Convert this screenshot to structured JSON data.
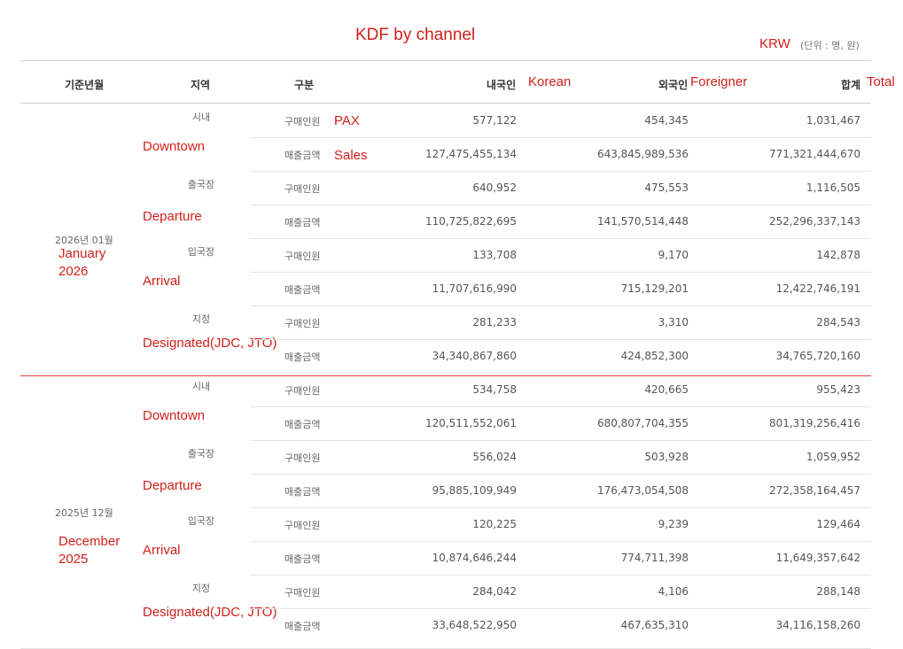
{
  "annotation": {
    "title": "KDF by channel",
    "krw": "KRW",
    "korean": "Korean",
    "foreigner": "Foreigner",
    "total": "Total",
    "pax": "PAX",
    "sales": "Sales"
  },
  "unit_note": "(단위 : 명, 원)",
  "headers": {
    "period": "기준년월",
    "region": "지역",
    "type": "구분",
    "korean": "내국인",
    "foreigner": "외국인",
    "total": "합계"
  },
  "groups": [
    {
      "period": "2026년 01월",
      "period_en": [
        "January",
        "2026"
      ],
      "regions": [
        {
          "name": "시내",
          "name_en": "Downtown",
          "rows": [
            {
              "type": "구매인원",
              "korean": "577,122",
              "foreigner": "454,345",
              "total": "1,031,467"
            },
            {
              "type": "매출금액",
              "korean": "127,475,455,134",
              "foreigner": "643,845,989,536",
              "total": "771,321,444,670"
            }
          ]
        },
        {
          "name": "출국장",
          "name_en": "Departure",
          "rows": [
            {
              "type": "구매인원",
              "korean": "640,952",
              "foreigner": "475,553",
              "total": "1,116,505"
            },
            {
              "type": "매출금액",
              "korean": "110,725,822,695",
              "foreigner": "141,570,514,448",
              "total": "252,296,337,143"
            }
          ]
        },
        {
          "name": "입국장",
          "name_en": "Arrival",
          "rows": [
            {
              "type": "구매인원",
              "korean": "133,708",
              "foreigner": "9,170",
              "total": "142,878"
            },
            {
              "type": "매출금액",
              "korean": "11,707,616,990",
              "foreigner": "715,129,201",
              "total": "12,422,746,191"
            }
          ]
        },
        {
          "name": "지정",
          "name_en": "Designated(JDC, JTO)",
          "rows": [
            {
              "type": "구매인원",
              "korean": "281,233",
              "foreigner": "3,310",
              "total": "284,543"
            },
            {
              "type": "매출금액",
              "korean": "34,340,867,860",
              "foreigner": "424,852,300",
              "total": "34,765,720,160"
            }
          ]
        }
      ]
    },
    {
      "period": "2025년 12월",
      "period_en": [
        "December",
        "2025"
      ],
      "regions": [
        {
          "name": "시내",
          "name_en": "Downtown",
          "rows": [
            {
              "type": "구매인원",
              "korean": "534,758",
              "foreigner": "420,665",
              "total": "955,423"
            },
            {
              "type": "매출금액",
              "korean": "120,511,552,061",
              "foreigner": "680,807,704,355",
              "total": "801,319,256,416"
            }
          ]
        },
        {
          "name": "출국장",
          "name_en": "Departure",
          "rows": [
            {
              "type": "구매인원",
              "korean": "556,024",
              "foreigner": "503,928",
              "total": "1,059,952"
            },
            {
              "type": "매출금액",
              "korean": "95,885,109,949",
              "foreigner": "176,473,054,508",
              "total": "272,358,164,457"
            }
          ]
        },
        {
          "name": "입국장",
          "name_en": "Arrival",
          "rows": [
            {
              "type": "구매인원",
              "korean": "120,225",
              "foreigner": "9,239",
              "total": "129,464"
            },
            {
              "type": "매출금액",
              "korean": "10,874,646,244",
              "foreigner": "774,711,398",
              "total": "11,649,357,642"
            }
          ]
        },
        {
          "name": "지정",
          "name_en": "Designated(JDC, JTO)",
          "rows": [
            {
              "type": "구매인원",
              "korean": "284,042",
              "foreigner": "4,106",
              "total": "288,148"
            },
            {
              "type": "매출금액",
              "korean": "33,648,522,950",
              "foreigner": "467,635,310",
              "total": "34,116,158,260"
            }
          ]
        }
      ]
    }
  ]
}
